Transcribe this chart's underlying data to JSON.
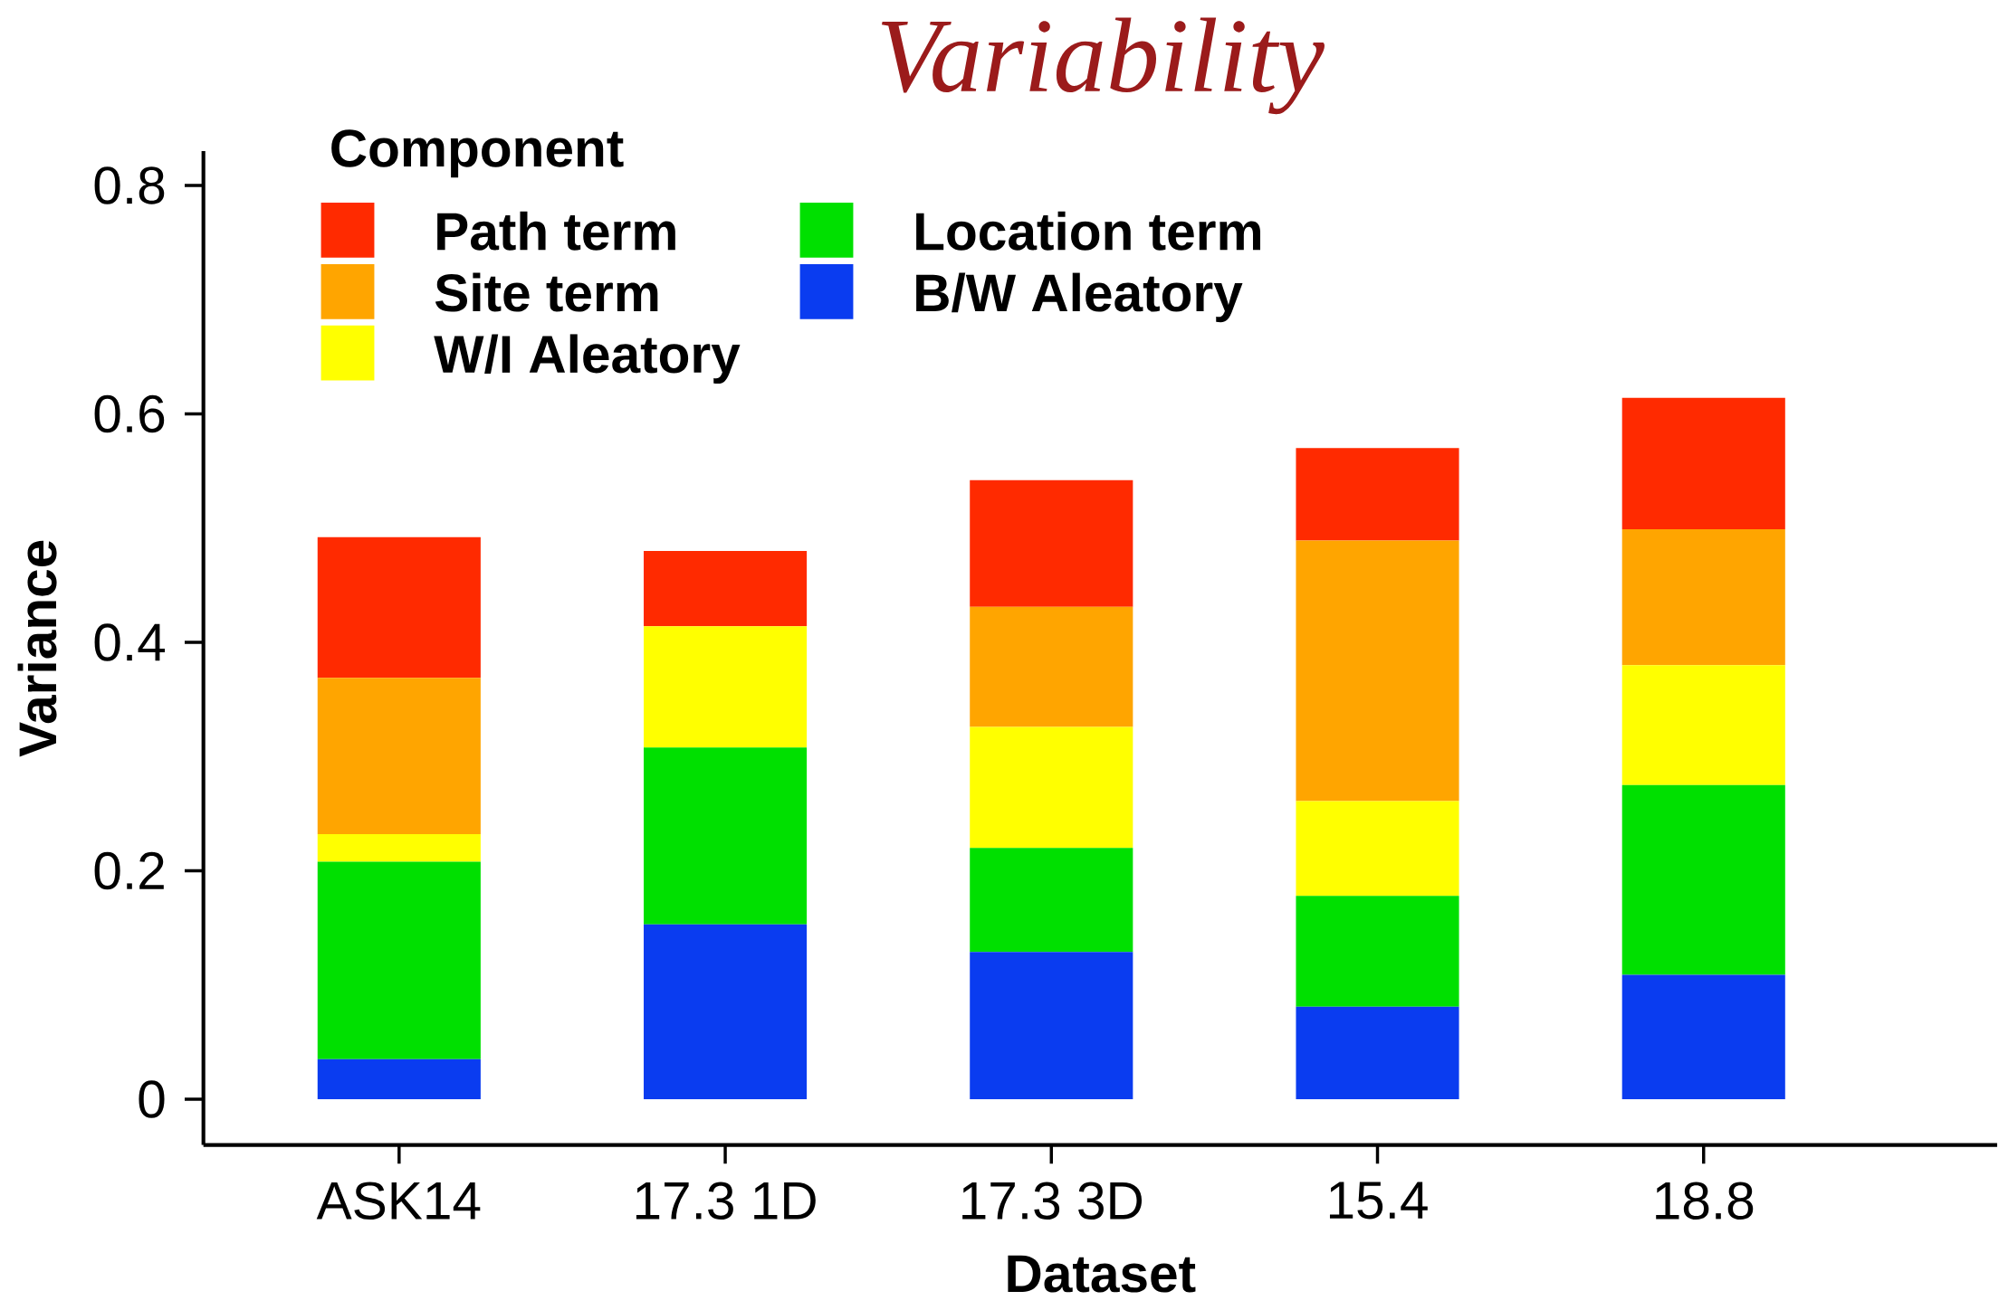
{
  "chart_data": {
    "type": "bar",
    "stacked": true,
    "title": "Variability",
    "xlabel": "Dataset",
    "ylabel": "Variance",
    "legend_title": "Component",
    "legend": "top left",
    "categories": [
      "ASK14",
      "17.3 1D",
      "17.3 3D",
      "15.4",
      "18.8"
    ],
    "series": [
      {
        "name": "B/W Aleatory",
        "color": "#0a3cf0",
        "values": [
          0.035,
          0.153,
          0.129,
          0.081,
          0.109
        ]
      },
      {
        "name": "Location term",
        "color": "#00e000",
        "values": [
          0.173,
          0.155,
          0.091,
          0.097,
          0.166
        ]
      },
      {
        "name": "W/I Aleatory",
        "color": "#ffff00",
        "values": [
          0.024,
          0.106,
          0.106,
          0.083,
          0.105
        ]
      },
      {
        "name": "Site term",
        "color": "#ffa500",
        "values": [
          0.137,
          0,
          0.105,
          0.228,
          0.119
        ]
      },
      {
        "name": "Path term",
        "color": "#ff2a00",
        "values": [
          0.123,
          0.066,
          0.111,
          0.081,
          0.115
        ]
      }
    ],
    "ylim": [
      -0.04,
      0.83
    ],
    "yticks": [
      0,
      0.2,
      0.4,
      0.6,
      0.8
    ]
  }
}
